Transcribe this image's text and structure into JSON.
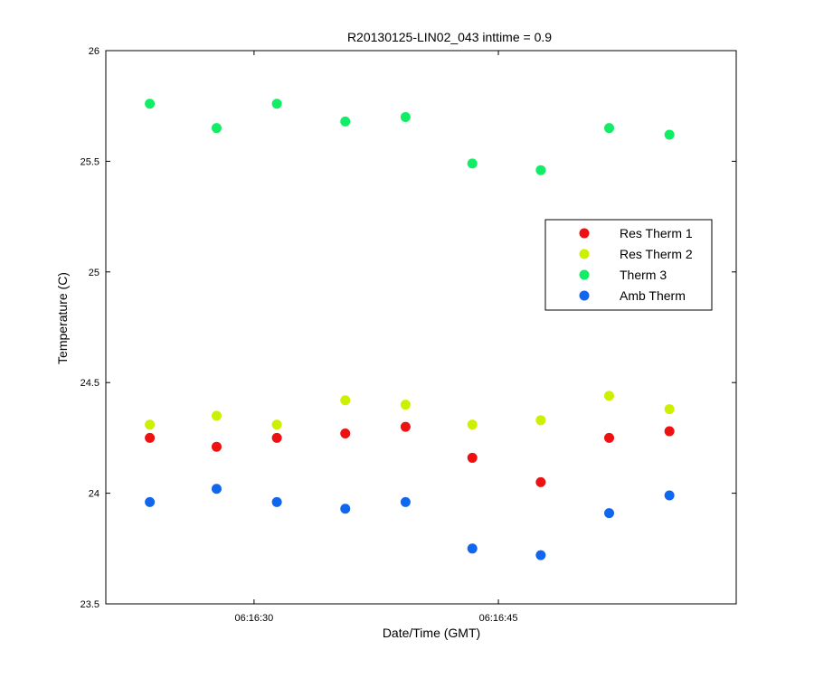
{
  "chart_data": {
    "type": "scatter",
    "title": "R20130125-LIN02_043 inttime = 0.9",
    "xlabel": "Date/Time (GMT)",
    "ylabel": "Temperature (C)",
    "x_unit": "time (HH:MM:SS)",
    "xlim": [
      "06:16:20.9",
      "06:16:59.6"
    ],
    "ylim": [
      23.5,
      26
    ],
    "x_ticks": [
      "06:16:30",
      "06:16:45"
    ],
    "y_ticks": [
      23.5,
      24,
      24.5,
      25,
      25.5,
      26
    ],
    "y_tick_labels": [
      "23.5",
      "24",
      "24.5",
      "25",
      "25.5",
      "26"
    ],
    "grid": false,
    "legend_position": "right",
    "x": [
      "06:16:23.6",
      "06:16:27.7",
      "06:16:31.4",
      "06:16:35.6",
      "06:16:39.3",
      "06:16:43.4",
      "06:16:47.6",
      "06:16:51.8",
      "06:16:55.5"
    ],
    "series": [
      {
        "name": "Res Therm 1",
        "color": "#ee1111",
        "values": [
          24.25,
          24.21,
          24.25,
          24.27,
          24.3,
          24.16,
          24.05,
          24.25,
          24.28
        ]
      },
      {
        "name": "Res Therm 2",
        "color": "#ccf000",
        "values": [
          24.31,
          24.35,
          24.31,
          24.42,
          24.4,
          24.31,
          24.33,
          24.44,
          24.38
        ]
      },
      {
        "name": "Therm 3",
        "color": "#11ee66",
        "values": [
          25.76,
          25.65,
          25.76,
          25.68,
          25.7,
          25.49,
          25.46,
          25.65,
          25.62
        ]
      },
      {
        "name": "Amb Therm",
        "color": "#1166ee",
        "values": [
          23.96,
          24.02,
          23.96,
          23.93,
          23.96,
          23.75,
          23.72,
          23.91,
          23.99
        ]
      }
    ]
  }
}
